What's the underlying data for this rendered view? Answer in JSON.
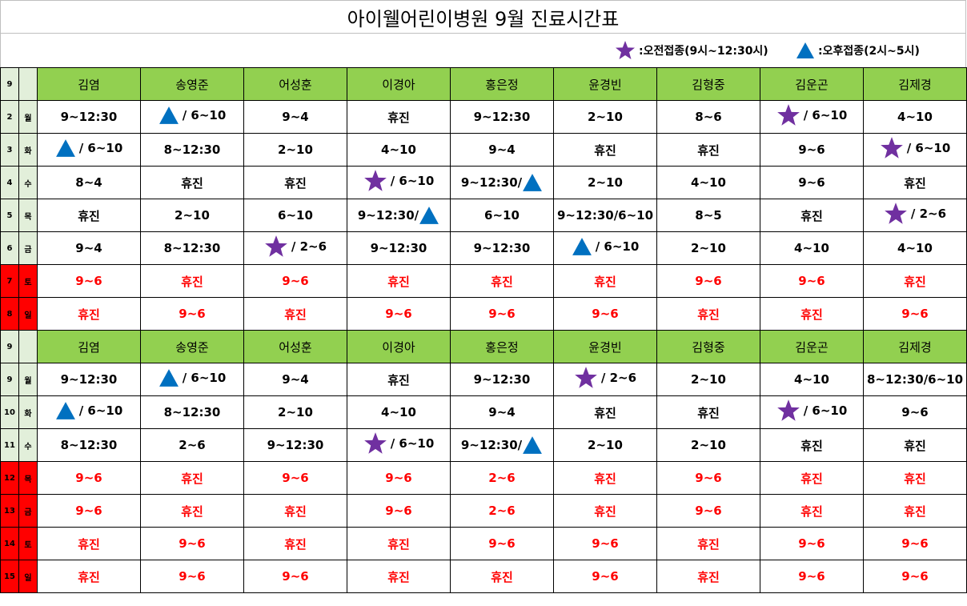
{
  "title": "아이웰어린이병원 9월 진료시간표",
  "legend": {
    "am_label": ":오전접종(9시~12:30시)",
    "pm_label": ":오후접종(2시~5시)"
  },
  "colors": {
    "header_green": "#92d050",
    "side_green": "#e2efda",
    "weekend_red": "#ff0000",
    "star_purple": "#7030a0",
    "triangle_blue": "#0070c0"
  },
  "sections": [
    {
      "month_label": "9",
      "doctors": [
        "김염",
        "송영준",
        "어성훈",
        "이경아",
        "홍은정",
        "윤경빈",
        "김형중",
        "김운곤",
        "김제경"
      ],
      "rows": [
        {
          "date": "2",
          "day": "월",
          "weekend": false,
          "cells": [
            {
              "text": "9~12:30"
            },
            {
              "icon": "triangle",
              "text": "/ 6~10"
            },
            {
              "text": "9~4"
            },
            {
              "text": "휴진"
            },
            {
              "text": "9~12:30"
            },
            {
              "text": "2~10"
            },
            {
              "text": "8~6"
            },
            {
              "icon": "star",
              "text": "/ 6~10"
            },
            {
              "text": "4~10"
            }
          ]
        },
        {
          "date": "3",
          "day": "화",
          "weekend": false,
          "cells": [
            {
              "icon": "triangle",
              "text": "/ 6~10"
            },
            {
              "text": "8~12:30"
            },
            {
              "text": "2~10"
            },
            {
              "text": "4~10"
            },
            {
              "text": "9~4"
            },
            {
              "text": "휴진"
            },
            {
              "text": "휴진"
            },
            {
              "text": "9~6"
            },
            {
              "icon": "star",
              "text": "/ 6~10"
            }
          ]
        },
        {
          "date": "4",
          "day": "수",
          "weekend": false,
          "cells": [
            {
              "text": "8~4"
            },
            {
              "text": "휴진"
            },
            {
              "text": "휴진"
            },
            {
              "icon": "star",
              "text": "/ 6~10"
            },
            {
              "text": "9~12:30/",
              "icon_after": "triangle"
            },
            {
              "text": "2~10"
            },
            {
              "text": "4~10"
            },
            {
              "text": "9~6"
            },
            {
              "text": "휴진"
            }
          ]
        },
        {
          "date": "5",
          "day": "목",
          "weekend": false,
          "cells": [
            {
              "text": "휴진"
            },
            {
              "text": "2~10"
            },
            {
              "text": "6~10"
            },
            {
              "text": "9~12:30/",
              "icon_after": "triangle"
            },
            {
              "text": "6~10"
            },
            {
              "text": "9~12:30/6~10"
            },
            {
              "text": "8~5"
            },
            {
              "text": "휴진"
            },
            {
              "icon": "star",
              "text": "/ 2~6"
            }
          ]
        },
        {
          "date": "6",
          "day": "금",
          "weekend": false,
          "cells": [
            {
              "text": "9~4"
            },
            {
              "text": "8~12:30"
            },
            {
              "icon": "star",
              "text": "/ 2~6"
            },
            {
              "text": "9~12:30"
            },
            {
              "text": "9~12:30"
            },
            {
              "icon": "triangle",
              "text": "/ 6~10"
            },
            {
              "text": "2~10"
            },
            {
              "text": "4~10"
            },
            {
              "text": "4~10"
            }
          ]
        },
        {
          "date": "7",
          "day": "토",
          "weekend": true,
          "cells": [
            {
              "text": "9~6"
            },
            {
              "text": "휴진"
            },
            {
              "text": "9~6"
            },
            {
              "text": "휴진"
            },
            {
              "text": "휴진"
            },
            {
              "text": "휴진"
            },
            {
              "text": "9~6"
            },
            {
              "text": "9~6"
            },
            {
              "text": "휴진"
            }
          ]
        },
        {
          "date": "8",
          "day": "일",
          "weekend": true,
          "cells": [
            {
              "text": "휴진"
            },
            {
              "text": "9~6"
            },
            {
              "text": "휴진"
            },
            {
              "text": "9~6"
            },
            {
              "text": "9~6"
            },
            {
              "text": "9~6"
            },
            {
              "text": "휴진"
            },
            {
              "text": "휴진"
            },
            {
              "text": "9~6"
            }
          ]
        }
      ]
    },
    {
      "month_label": "9",
      "doctors": [
        "김염",
        "송영준",
        "어성훈",
        "이경아",
        "홍은정",
        "윤경빈",
        "김형중",
        "김운곤",
        "김제경"
      ],
      "rows": [
        {
          "date": "9",
          "day": "월",
          "weekend": false,
          "cells": [
            {
              "text": "9~12:30"
            },
            {
              "icon": "triangle",
              "text": "/ 6~10"
            },
            {
              "text": "9~4"
            },
            {
              "text": "휴진"
            },
            {
              "text": "9~12:30"
            },
            {
              "icon": "star",
              "text": "/ 2~6"
            },
            {
              "text": "2~10"
            },
            {
              "text": "4~10"
            },
            {
              "text": "8~12:30/6~10"
            }
          ]
        },
        {
          "date": "10",
          "day": "화",
          "weekend": false,
          "cells": [
            {
              "icon": "triangle",
              "text": "/ 6~10"
            },
            {
              "text": "8~12:30"
            },
            {
              "text": "2~10"
            },
            {
              "text": "4~10"
            },
            {
              "text": "9~4"
            },
            {
              "text": "휴진"
            },
            {
              "text": "휴진"
            },
            {
              "icon": "star",
              "text": "/ 6~10"
            },
            {
              "text": "9~6"
            }
          ]
        },
        {
          "date": "11",
          "day": "수",
          "weekend": false,
          "cells": [
            {
              "text": "8~12:30"
            },
            {
              "text": "2~6"
            },
            {
              "text": "9~12:30"
            },
            {
              "icon": "star",
              "text": "/ 6~10"
            },
            {
              "text": "9~12:30/",
              "icon_after": "triangle"
            },
            {
              "text": "2~10"
            },
            {
              "text": "2~10"
            },
            {
              "text": "휴진"
            },
            {
              "text": "휴진"
            }
          ]
        },
        {
          "date": "12",
          "day": "목",
          "weekend": true,
          "cells": [
            {
              "text": "9~6"
            },
            {
              "text": "휴진"
            },
            {
              "text": "9~6"
            },
            {
              "text": "9~6"
            },
            {
              "text": "2~6"
            },
            {
              "text": "휴진"
            },
            {
              "text": "9~6"
            },
            {
              "text": "휴진"
            },
            {
              "text": "휴진"
            }
          ]
        },
        {
          "date": "13",
          "day": "금",
          "weekend": true,
          "cells": [
            {
              "text": "9~6"
            },
            {
              "text": "휴진"
            },
            {
              "text": "휴진"
            },
            {
              "text": "9~6"
            },
            {
              "text": "2~6"
            },
            {
              "text": "휴진"
            },
            {
              "text": "9~6"
            },
            {
              "text": "휴진"
            },
            {
              "text": "휴진"
            }
          ]
        },
        {
          "date": "14",
          "day": "토",
          "weekend": true,
          "cells": [
            {
              "text": "휴진"
            },
            {
              "text": "9~6"
            },
            {
              "text": "휴진"
            },
            {
              "text": "휴진"
            },
            {
              "text": "9~6"
            },
            {
              "text": "9~6"
            },
            {
              "text": "휴진"
            },
            {
              "text": "9~6"
            },
            {
              "text": "9~6"
            }
          ]
        },
        {
          "date": "15",
          "day": "일",
          "weekend": true,
          "cells": [
            {
              "text": "휴진"
            },
            {
              "text": "9~6"
            },
            {
              "text": "9~6"
            },
            {
              "text": "휴진"
            },
            {
              "text": "휴진"
            },
            {
              "text": "9~6"
            },
            {
              "text": "휴진"
            },
            {
              "text": "9~6"
            },
            {
              "text": "9~6"
            }
          ]
        }
      ]
    }
  ]
}
